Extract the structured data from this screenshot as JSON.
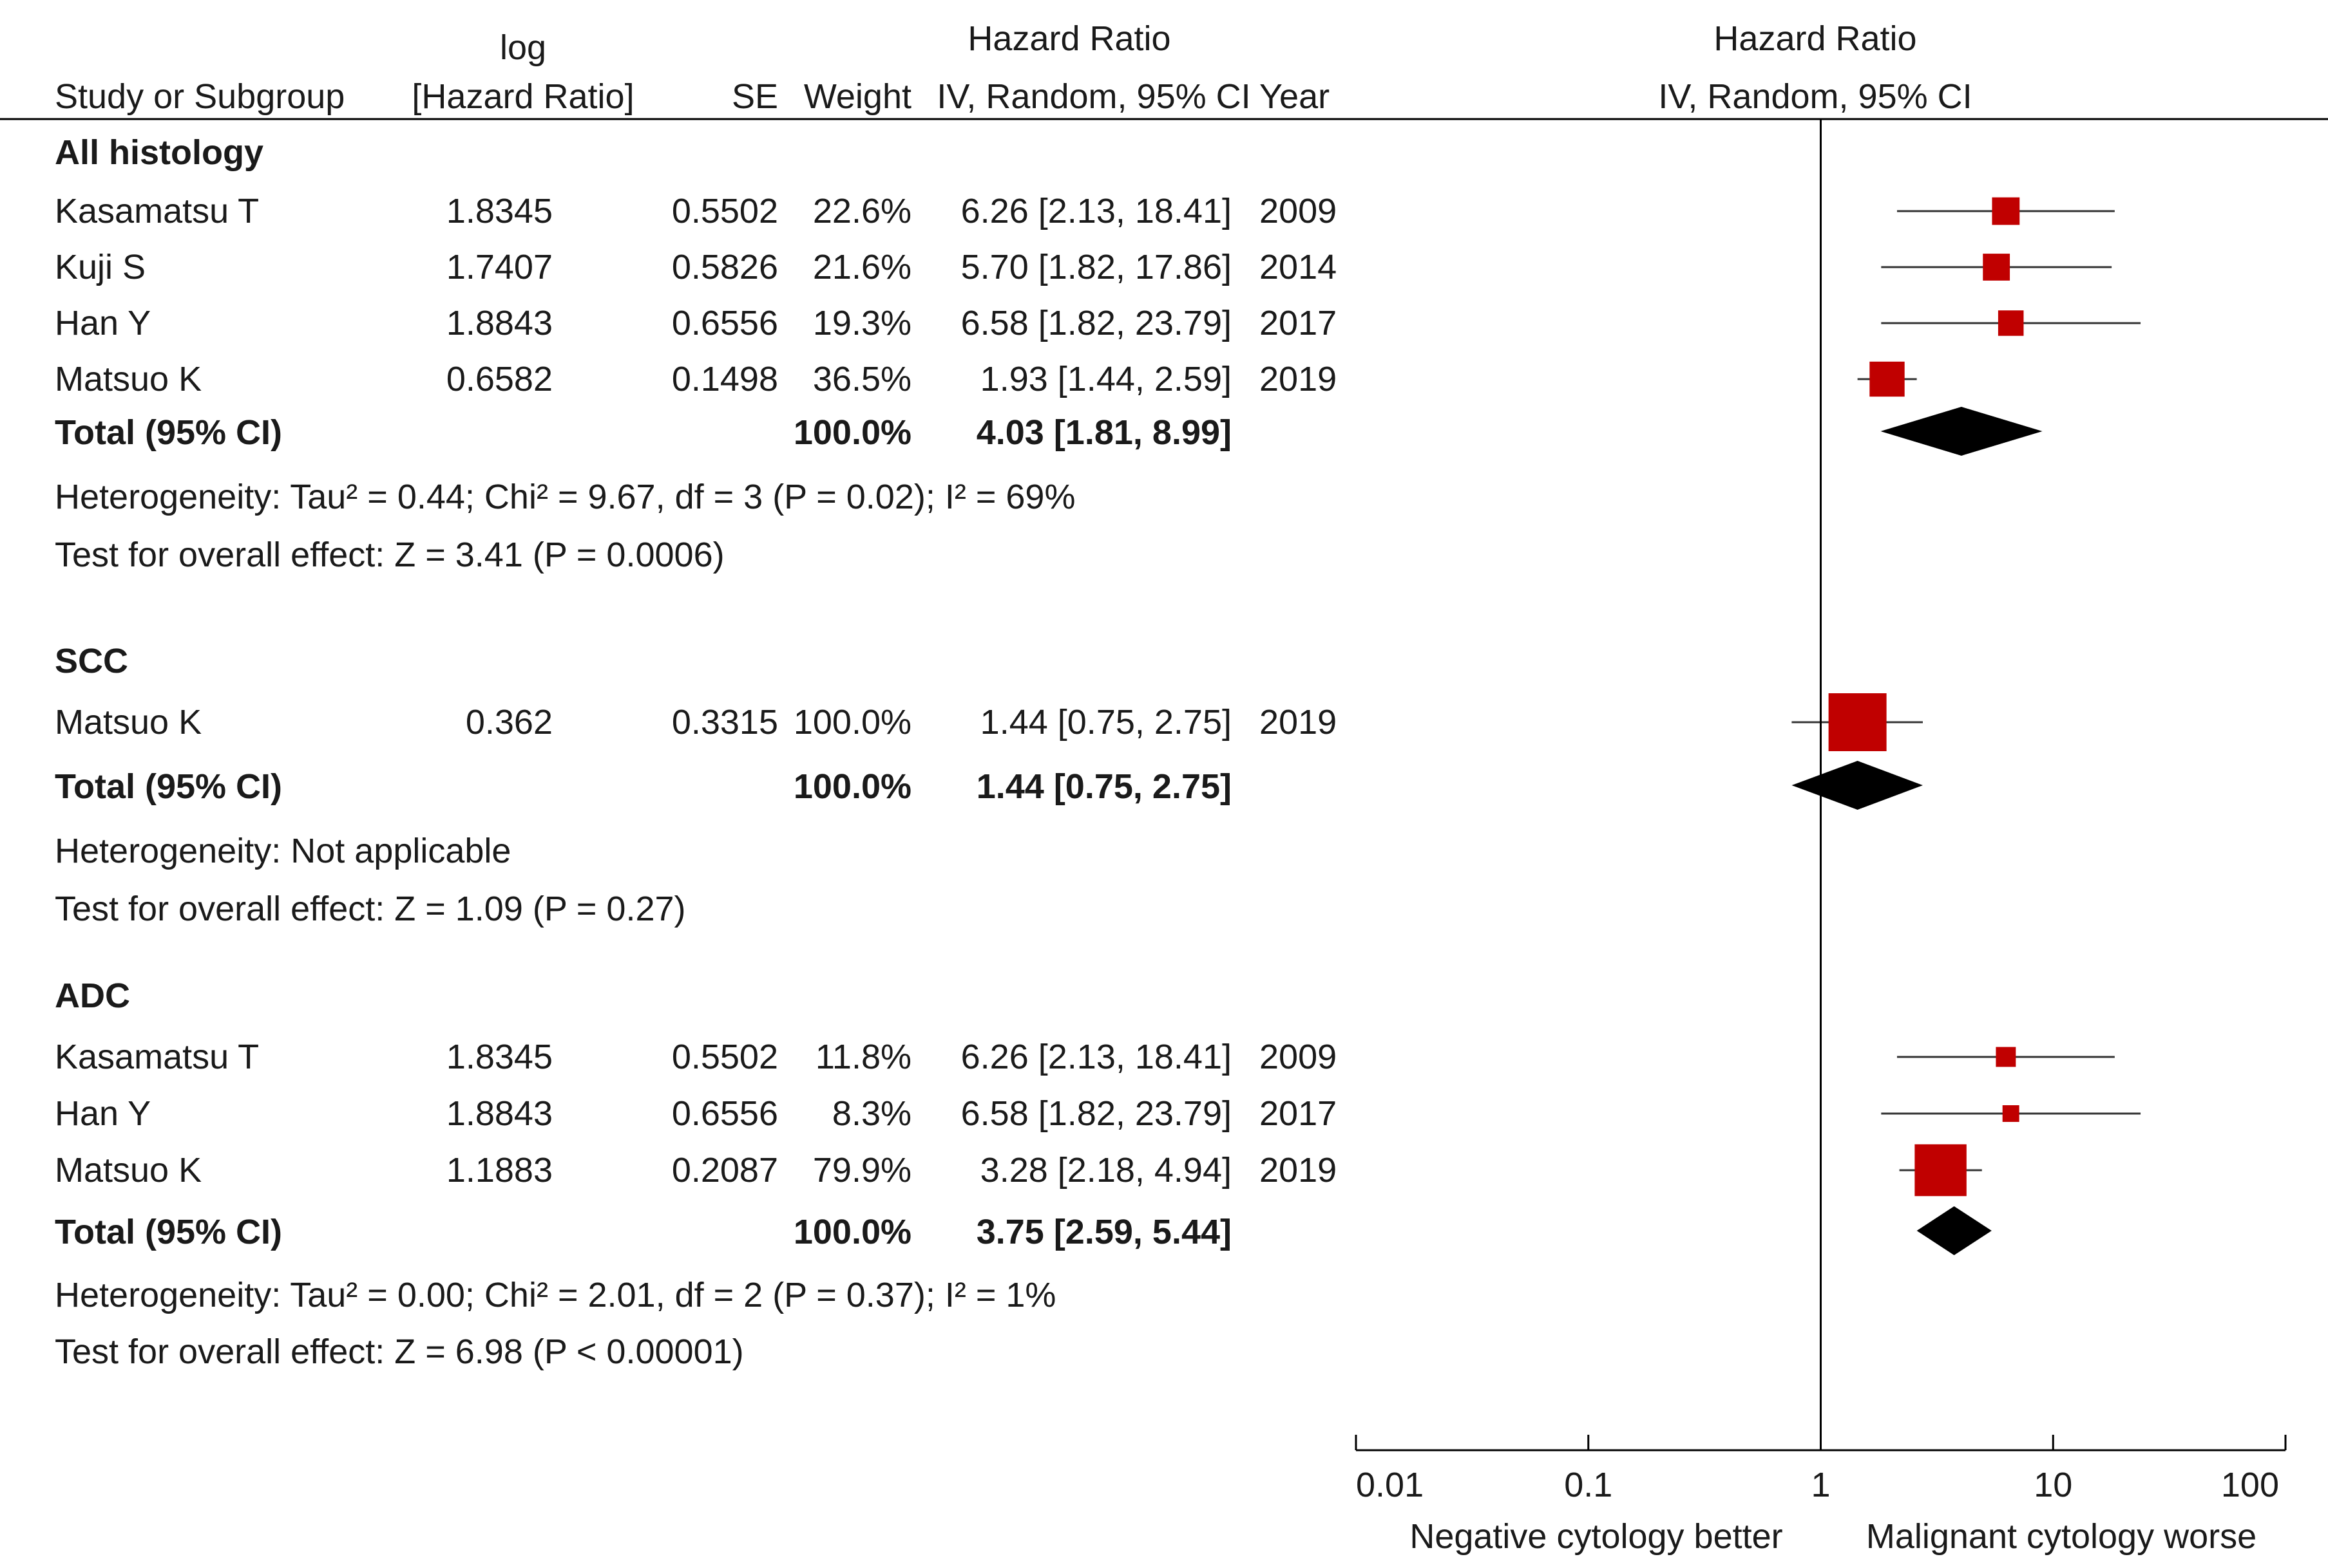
{
  "header": {
    "study": "Study or Subgroup",
    "log_line1": "log",
    "log_line2": "[Hazard Ratio]",
    "se": "SE",
    "weight": "Weight",
    "hr_title": "Hazard Ratio",
    "hr_method": "IV, Random, 95% CI",
    "year": "Year",
    "plot_title": "Hazard Ratio",
    "plot_method": "IV, Random, 95% CI"
  },
  "axis": {
    "ticks": [
      "0.01",
      "0.1",
      "1",
      "10",
      "100"
    ],
    "left_label": "Negative cytology better",
    "right_label": "Malignant cytology worse"
  },
  "colors": {
    "study_marker": "#c00000",
    "diamond": "#000000",
    "line": "#333333",
    "text": "#1a1a1a"
  },
  "chart_data": {
    "type": "forest",
    "title": "Hazard Ratio",
    "xlabel": "IV, Random, 95% CI",
    "scale": "log",
    "xlim": [
      0.01,
      100
    ],
    "subgroups": [
      {
        "name": "All histology",
        "studies": [
          {
            "study": "Kasamatsu T",
            "log_hr": "1.8345",
            "se": "0.5502",
            "weight": "22.6%",
            "ci_text": "6.26 [2.13, 18.41]",
            "year": "2009",
            "hr": 6.26,
            "lo": 2.13,
            "hi": 18.41,
            "w": 22.6
          },
          {
            "study": "Kuji S",
            "log_hr": "1.7407",
            "se": "0.5826",
            "weight": "21.6%",
            "ci_text": "5.70 [1.82, 17.86]",
            "year": "2014",
            "hr": 5.7,
            "lo": 1.82,
            "hi": 17.86,
            "w": 21.6
          },
          {
            "study": "Han Y",
            "log_hr": "1.8843",
            "se": "0.6556",
            "weight": "19.3%",
            "ci_text": "6.58 [1.82, 23.79]",
            "year": "2017",
            "hr": 6.58,
            "lo": 1.82,
            "hi": 23.79,
            "w": 19.3
          },
          {
            "study": "Matsuo K",
            "log_hr": "0.6582",
            "se": "0.1498",
            "weight": "36.5%",
            "ci_text": "1.93 [1.44, 2.59]",
            "year": "2019",
            "hr": 1.93,
            "lo": 1.44,
            "hi": 2.59,
            "w": 36.5
          }
        ],
        "total": {
          "label": "Total (95% CI)",
          "weight": "100.0%",
          "ci_text": "4.03 [1.81, 8.99]",
          "hr": 4.03,
          "lo": 1.81,
          "hi": 8.99
        },
        "heterogeneity": "Heterogeneity: Tau² = 0.44; Chi² = 9.67, df = 3 (P = 0.02); I² = 69%",
        "overall": "Test for overall effect: Z = 3.41 (P = 0.0006)"
      },
      {
        "name": "SCC",
        "studies": [
          {
            "study": "Matsuo K",
            "log_hr": "0.362",
            "se": "0.3315",
            "weight": "100.0%",
            "ci_text": "1.44 [0.75, 2.75]",
            "year": "2019",
            "hr": 1.44,
            "lo": 0.75,
            "hi": 2.75,
            "w": 100.0
          }
        ],
        "total": {
          "label": "Total (95% CI)",
          "weight": "100.0%",
          "ci_text": "1.44 [0.75, 2.75]",
          "hr": 1.44,
          "lo": 0.75,
          "hi": 2.75
        },
        "heterogeneity": "Heterogeneity: Not applicable",
        "overall": "Test for overall effect: Z = 1.09 (P = 0.27)"
      },
      {
        "name": "ADC",
        "studies": [
          {
            "study": "Kasamatsu T",
            "log_hr": "1.8345",
            "se": "0.5502",
            "weight": "11.8%",
            "ci_text": "6.26 [2.13, 18.41]",
            "year": "2009",
            "hr": 6.26,
            "lo": 2.13,
            "hi": 18.41,
            "w": 11.8
          },
          {
            "study": "Han Y",
            "log_hr": "1.8843",
            "se": "0.6556",
            "weight": "8.3%",
            "ci_text": "6.58 [1.82, 23.79]",
            "year": "2017",
            "hr": 6.58,
            "lo": 1.82,
            "hi": 23.79,
            "w": 8.3
          },
          {
            "study": "Matsuo K",
            "log_hr": "1.1883",
            "se": "0.2087",
            "weight": "79.9%",
            "ci_text": "3.28 [2.18, 4.94]",
            "year": "2019",
            "hr": 3.28,
            "lo": 2.18,
            "hi": 4.94,
            "w": 79.9
          }
        ],
        "total": {
          "label": "Total (95% CI)",
          "weight": "100.0%",
          "ci_text": "3.75 [2.59, 5.44]",
          "hr": 3.75,
          "lo": 2.59,
          "hi": 5.44
        },
        "heterogeneity": "Heterogeneity: Tau² = 0.00; Chi² = 2.01, df = 2 (P = 0.37); I² = 1%",
        "overall": "Test for overall effect: Z = 6.98 (P < 0.00001)"
      }
    ]
  }
}
